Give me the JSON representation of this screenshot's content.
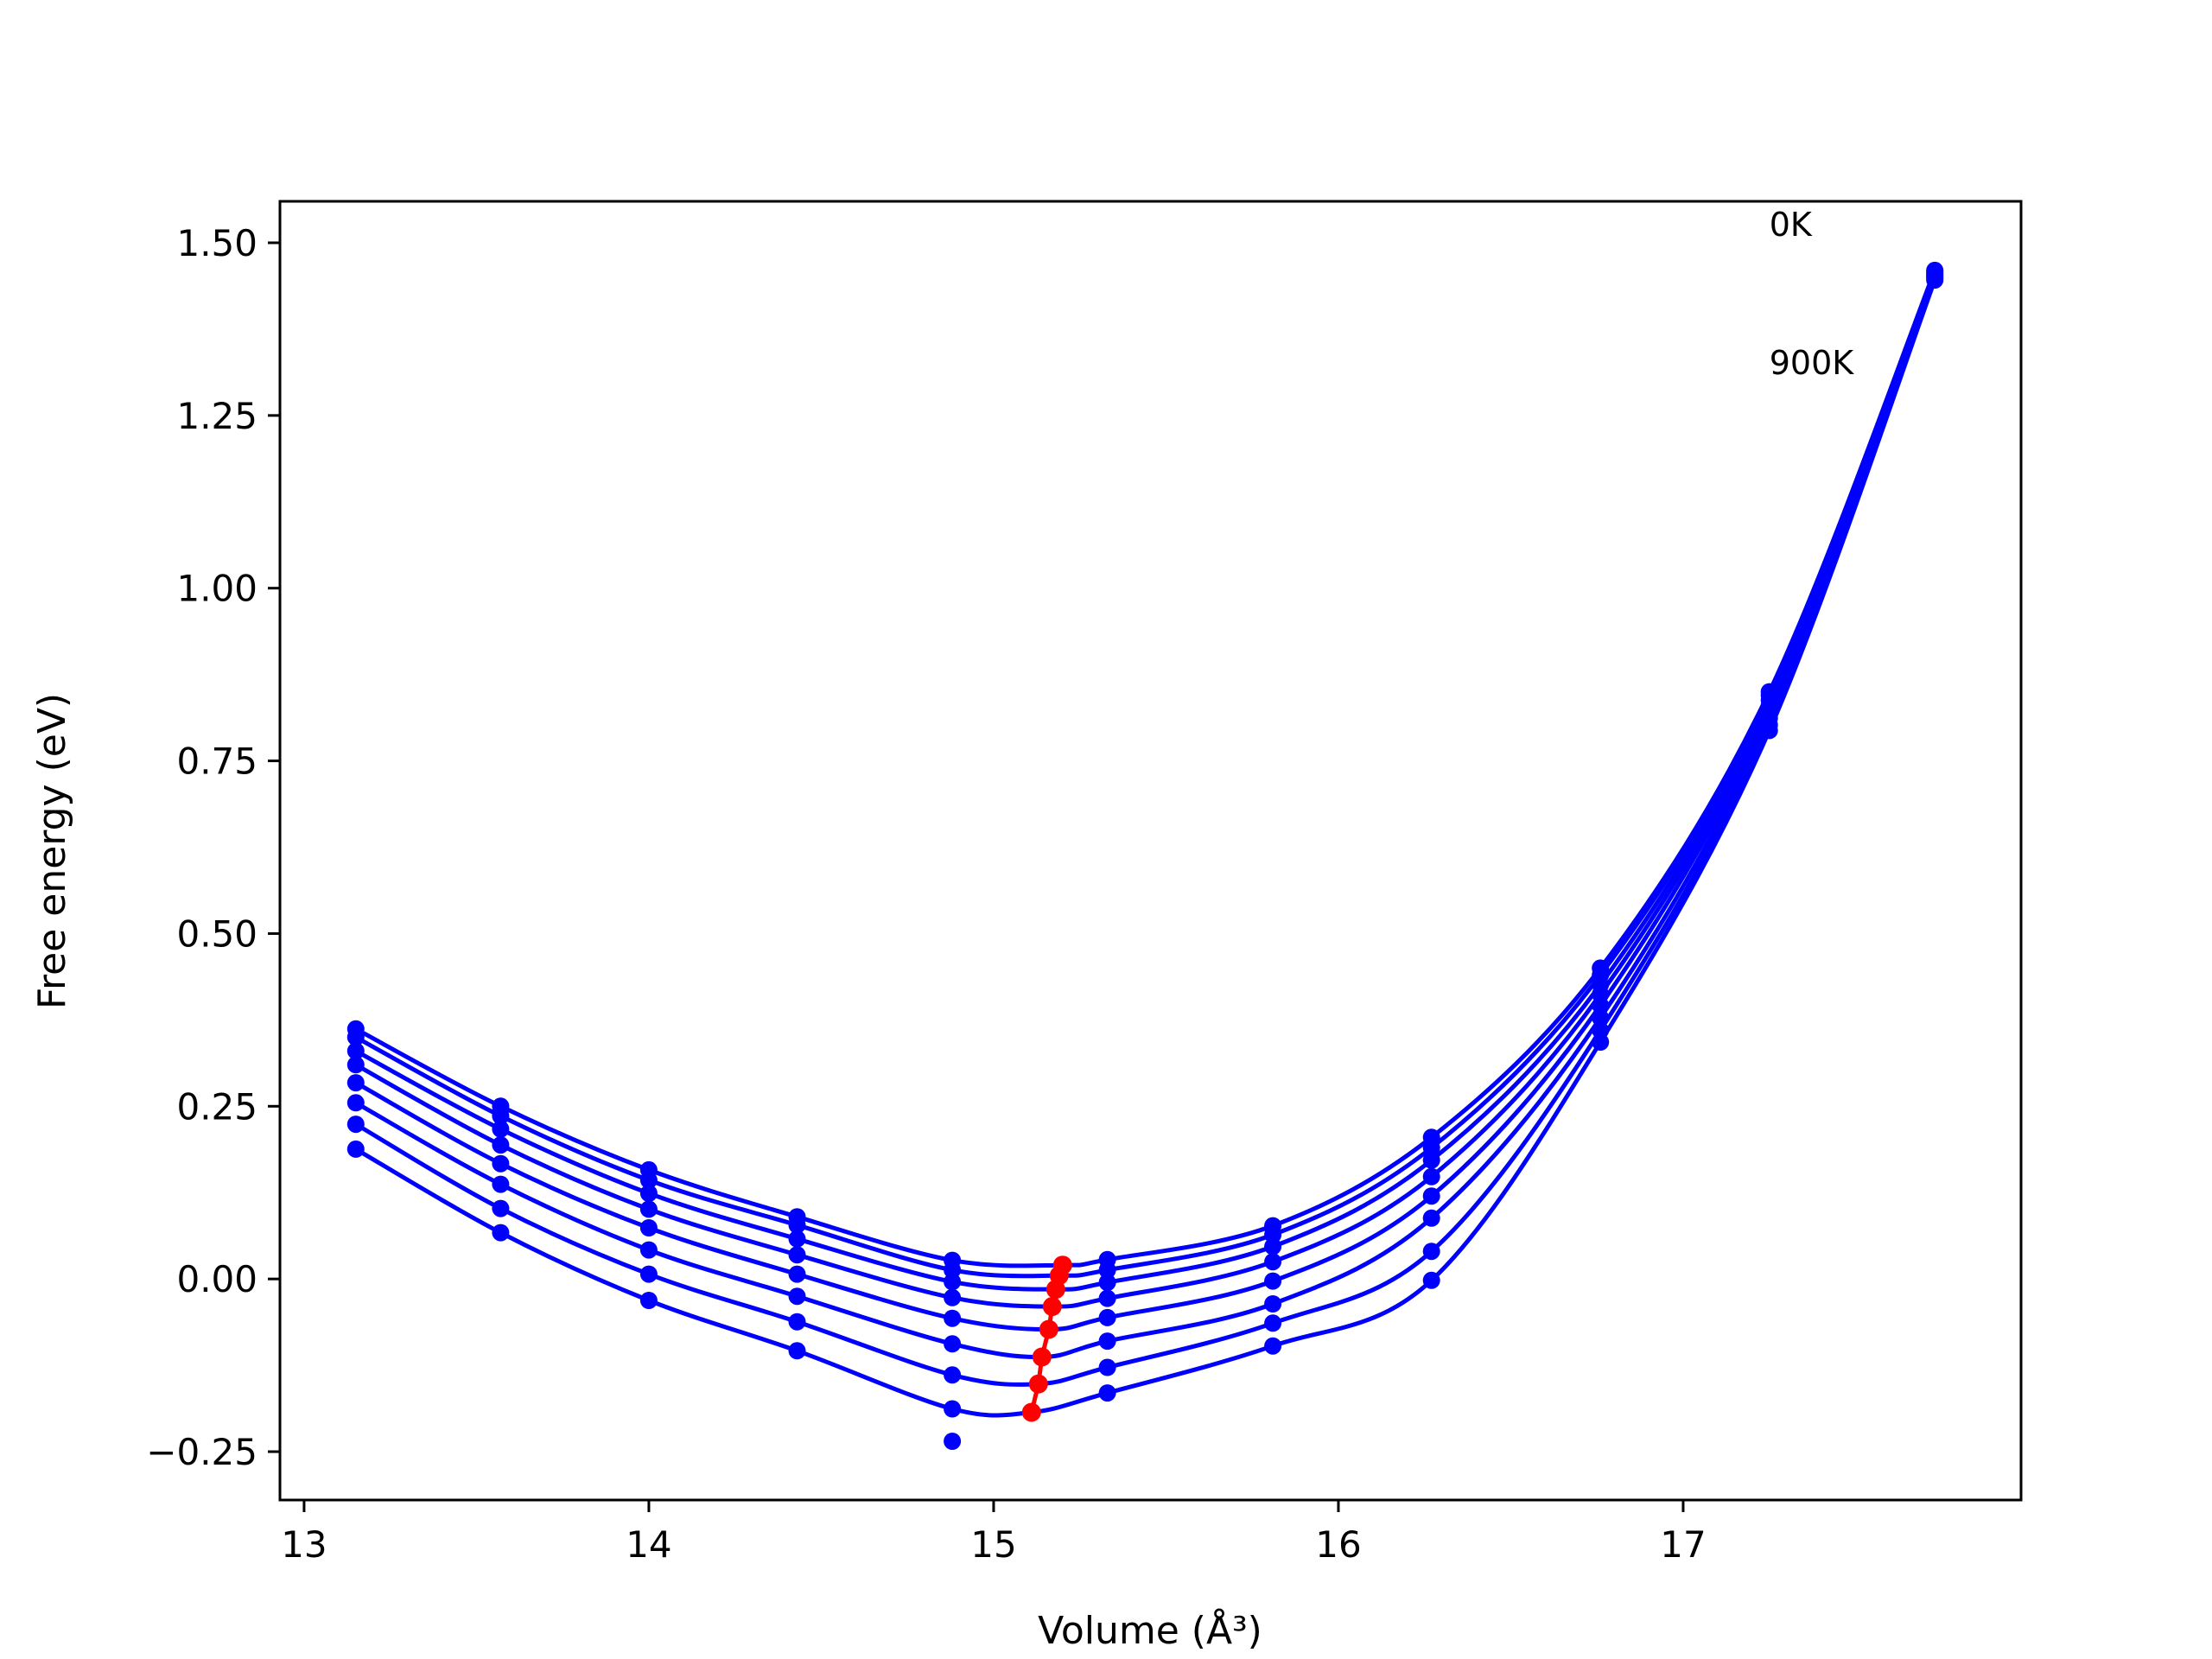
{
  "chart_data": {
    "type": "line",
    "xlabel": "Volume (Å³)",
    "ylabel": "Free energy (eV)",
    "xlim": [
      12.93,
      17.98
    ],
    "ylim": [
      -0.32,
      1.56
    ],
    "x_ticks": [
      13,
      14,
      15,
      16,
      17
    ],
    "x_tick_labels": [
      "13",
      "14",
      "15",
      "16",
      "17"
    ],
    "y_ticks": [
      -0.25,
      0.0,
      0.25,
      0.5,
      0.75,
      1.0,
      1.25,
      1.5
    ],
    "y_tick_labels": [
      "−0.25",
      "0.00",
      "0.25",
      "0.50",
      "0.75",
      "1.00",
      "1.25",
      "1.50"
    ],
    "grid": false,
    "annotations": [
      {
        "text": "0K",
        "x": 17.25,
        "y": 1.51
      },
      {
        "text": "900K",
        "x": 17.25,
        "y": 1.31
      }
    ],
    "x": [
      13.15,
      13.57,
      14.0,
      14.43,
      14.88,
      15.33,
      15.81,
      16.27,
      16.76,
      17.25,
      17.73
    ],
    "curve_color": "#0000ff",
    "point_color": "#0000ff",
    "min_color": "#ff0000",
    "series": [
      {
        "values": [
          0.362,
          0.25,
          0.158,
          0.09,
          0.027,
          0.028,
          0.077,
          0.205,
          0.45,
          0.85,
          1.46
        ],
        "min": [
          15.2,
          0.02
        ]
      },
      {
        "values": [
          0.35,
          0.236,
          0.143,
          0.078,
          0.013,
          0.013,
          0.064,
          0.19,
          0.44,
          0.845,
          1.458
        ],
        "min": [
          15.19,
          0.005
        ]
      },
      {
        "values": [
          0.33,
          0.217,
          0.124,
          0.058,
          -0.004,
          -0.005,
          0.047,
          0.172,
          0.426,
          0.838,
          1.456
        ],
        "min": [
          15.18,
          -0.015
        ]
      },
      {
        "values": [
          0.31,
          0.194,
          0.101,
          0.035,
          -0.027,
          -0.028,
          0.025,
          0.148,
          0.412,
          0.83,
          1.454
        ],
        "min": [
          15.17,
          -0.04
        ]
      },
      {
        "values": [
          0.284,
          0.167,
          0.074,
          0.007,
          -0.057,
          -0.056,
          -0.003,
          0.12,
          0.396,
          0.822,
          1.452
        ],
        "min": [
          15.16,
          -0.073
        ]
      },
      {
        "values": [
          0.255,
          0.137,
          0.042,
          -0.025,
          -0.094,
          -0.09,
          -0.036,
          0.088,
          0.378,
          0.812,
          1.45
        ],
        "min": [
          15.14,
          -0.113
        ]
      },
      {
        "values": [
          0.224,
          0.102,
          0.007,
          -0.062,
          -0.139,
          -0.128,
          -0.064,
          0.04,
          0.36,
          0.802,
          1.448
        ],
        "min": [
          15.13,
          -0.152
        ]
      },
      {
        "values": [
          0.188,
          0.067,
          -0.031,
          -0.104,
          -0.188,
          -0.165,
          -0.097,
          -0.002,
          0.343,
          0.794,
          1.446
        ],
        "min": [
          15.11,
          -0.193
        ]
      }
    ],
    "extra_points": [
      {
        "x": 14.88,
        "y": -0.235
      }
    ]
  }
}
